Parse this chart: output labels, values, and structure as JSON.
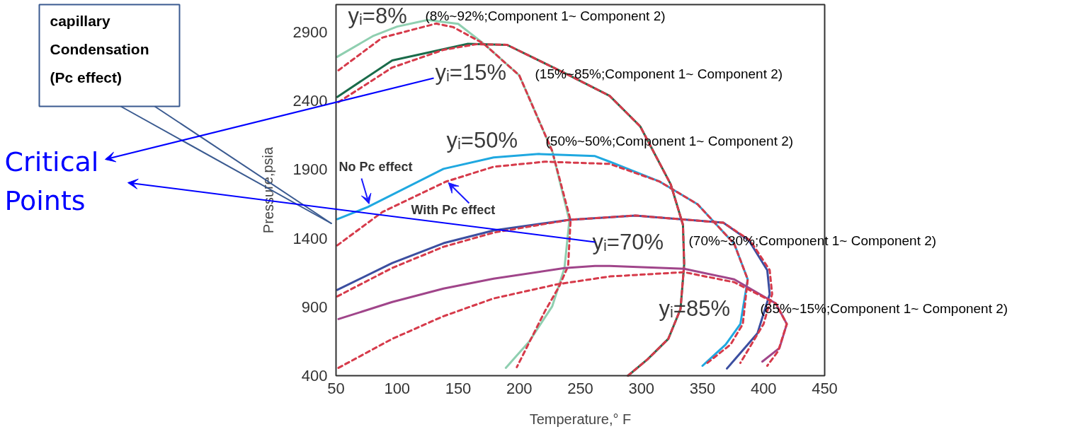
{
  "chart_data": {
    "type": "line",
    "xlabel": "Temperature,° F",
    "ylabel": "Pressure,psia",
    "xlim": [
      50,
      450
    ],
    "ylim": [
      400,
      3100
    ],
    "xticks": [
      50,
      100,
      150,
      200,
      250,
      300,
      350,
      400,
      450
    ],
    "yticks": [
      400,
      900,
      1400,
      1900,
      2400,
      2900
    ],
    "marker": "none",
    "series": [
      {
        "color": "#8fcfb0",
        "line_style": "solid",
        "x": [
          51,
          80,
          100,
          125,
          150,
          171,
          200,
          227,
          241,
          237,
          227,
          208,
          189
        ],
        "values": [
          2720,
          2870,
          2940,
          2988,
          2960,
          2815,
          2585,
          2034,
          1530,
          1183,
          905,
          647,
          457
        ]
      },
      {
        "color": "#d63a4a",
        "line_style": "dashed",
        "x": [
          52,
          88,
          132,
          146,
          171,
          200,
          227,
          242,
          240,
          233,
          221,
          198
        ],
        "values": [
          2622,
          2860,
          2962,
          2936,
          2815,
          2585,
          2034,
          1530,
          1199,
          1055,
          869,
          462
        ]
      },
      {
        "color": "#1a6b4a",
        "line_style": "solid",
        "x": [
          51,
          96,
          158,
          190,
          241,
          274,
          299,
          324,
          334,
          335,
          332,
          322,
          305,
          289
        ],
        "values": [
          2428,
          2694,
          2815,
          2807,
          2585,
          2436,
          2214,
          1792,
          1498,
          1209,
          885,
          668,
          519,
          400
        ]
      },
      {
        "color": "#d63a4a",
        "line_style": "dashed",
        "x": [
          52,
          96,
          138,
          165,
          190,
          241,
          274,
          299,
          324,
          334,
          335,
          332,
          322,
          305,
          289
        ],
        "values": [
          2390,
          2642,
          2771,
          2812,
          2807,
          2585,
          2436,
          2214,
          1792,
          1498,
          1209,
          885,
          668,
          519,
          400
        ]
      },
      {
        "color": "#1fa8e0",
        "line_style": "solid",
        "x": [
          51,
          76,
          138,
          179,
          216,
          262,
          274,
          315,
          346,
          376,
          387,
          381,
          369,
          350
        ],
        "values": [
          1539,
          1627,
          1905,
          1988,
          2013,
          1998,
          1957,
          1812,
          1647,
          1359,
          1101,
          776,
          627,
          472
        ]
      },
      {
        "color": "#d63a4a",
        "line_style": "dashed",
        "x": [
          51,
          88,
          140,
          179,
          221,
          274,
          315,
          346,
          376,
          387,
          383,
          373,
          354
        ],
        "values": [
          1348,
          1591,
          1812,
          1920,
          1957,
          1941,
          1812,
          1647,
          1359,
          1101,
          776,
          627,
          493
        ]
      },
      {
        "color": "#3b4ea0",
        "line_style": "solid",
        "x": [
          51,
          96,
          138,
          179,
          241,
          295,
          367,
          388,
          403,
          405,
          395,
          370
        ],
        "values": [
          1024,
          1220,
          1364,
          1457,
          1534,
          1565,
          1513,
          1384,
          1168,
          993,
          709,
          452
        ]
      },
      {
        "color": "#d63a4a",
        "line_style": "dashed",
        "x": [
          51,
          96,
          138,
          179,
          241,
          295,
          367,
          389,
          405,
          407,
          400,
          381
        ],
        "values": [
          977,
          1184,
          1338,
          1441,
          1534,
          1565,
          1513,
          1384,
          1168,
          993,
          776,
          493
        ]
      },
      {
        "color": "#a0458a",
        "line_style": "solid",
        "x": [
          52,
          96,
          138,
          179,
          237,
          262,
          274,
          335,
          376,
          410,
          419,
          413,
          399
        ],
        "values": [
          812,
          936,
          1034,
          1106,
          1183,
          1199,
          1199,
          1178,
          1101,
          926,
          776,
          601,
          503
        ]
      },
      {
        "color": "#d63a4a",
        "line_style": "dashed",
        "x": [
          52,
          96,
          138,
          179,
          231,
          274,
          335,
          376,
          410,
          419,
          412,
          403
        ],
        "values": [
          457,
          668,
          833,
          962,
          1065,
          1122,
          1153,
          1080,
          926,
          776,
          580,
          472
        ]
      }
    ],
    "annotations": [
      "yᵢ=8%",
      "(8%~92%;Component 1~ Component 2)",
      "yᵢ=15%",
      "(15%~85%;Component 1~ Component 2)",
      "yᵢ=50%",
      "(50%~50%;Component 1~ Component 2)",
      "yᵢ=70%",
      "(70%~30%;Component 1~ Component 2)",
      "yᵢ=85%",
      "(85%~15%;Component 1~ Component 2)",
      {
        "text": "No Pc effect",
        "x": 77,
        "y": 1650
      },
      {
        "text": "With Pc effect",
        "x": 142,
        "y": 1804
      },
      "capillary\nCondensation\n(Pc effect)",
      "Critical\nPoints"
    ]
  }
}
